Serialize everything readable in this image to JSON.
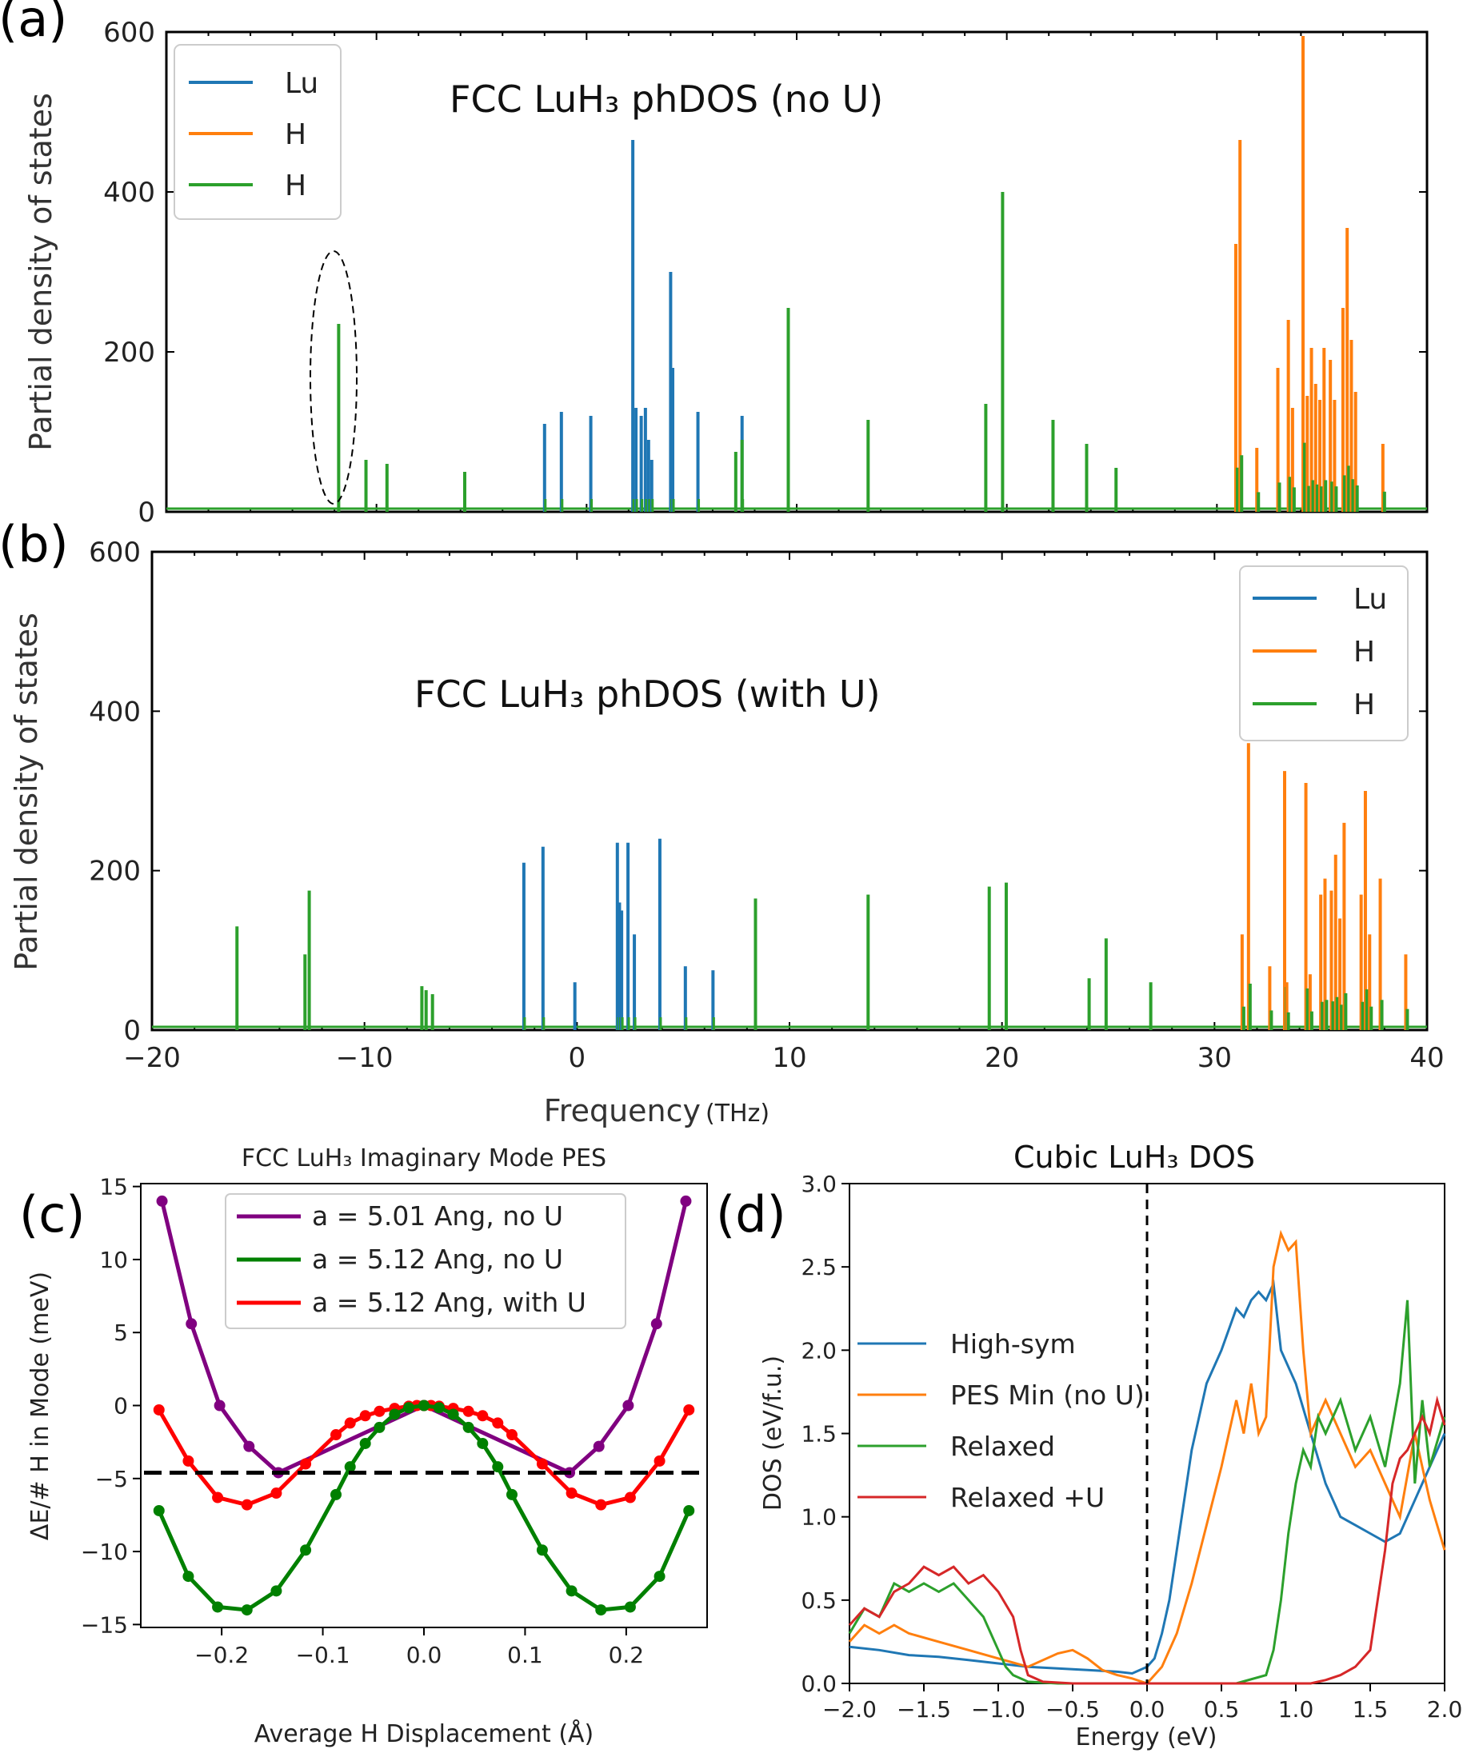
{
  "labels": {
    "a": "(a)",
    "b": "(b)",
    "c": "(c)",
    "d": "(d)"
  },
  "colors": {
    "lu": "#1f77b4",
    "h1": "#ff7f0e",
    "h2": "#2ca02c",
    "h3": "#d62728",
    "purple": "#800080",
    "green": "#008000",
    "red": "#ff0000"
  },
  "chart_data": [
    {
      "id": "a",
      "type": "bar",
      "title": "FCC LuH₃ phDOS (no U)",
      "ylabel": "Partial density of states",
      "xlabel": "",
      "xlim": [
        -20,
        40
      ],
      "ylim": [
        0,
        600
      ],
      "yticks": [
        0,
        200,
        400,
        600
      ],
      "legend": [
        "Lu",
        "H",
        "H"
      ],
      "legend_position": "top-left",
      "annotation": "dashed ellipse around peak near -12 THz",
      "series": [
        {
          "name": "Lu",
          "x": [
            -2,
            -1.2,
            0.2,
            2.2,
            2.35,
            2.6,
            2.8,
            2.95,
            3.1,
            4,
            4.1,
            5.3,
            7.4
          ],
          "values": [
            110,
            125,
            120,
            465,
            130,
            120,
            130,
            90,
            65,
            300,
            180,
            125,
            120
          ]
        },
        {
          "name": "H",
          "x": [
            30.9,
            31.1,
            31.9,
            32.9,
            33.4,
            33.6,
            34.1,
            34.3,
            34.5,
            34.7,
            34.9,
            35.1,
            35.4,
            35.6,
            36,
            36.2,
            36.4,
            36.6,
            37.9
          ],
          "values": [
            335,
            465,
            80,
            180,
            240,
            130,
            595,
            145,
            205,
            160,
            140,
            205,
            190,
            140,
            255,
            355,
            215,
            150,
            85
          ]
        },
        {
          "name": "H",
          "x": [
            -11.8,
            -10.5,
            -9.5,
            -5.8,
            7.1,
            7.4,
            9.6,
            13.4,
            19,
            19.8,
            22.2,
            23.8,
            25.2
          ],
          "values": [
            235,
            65,
            60,
            50,
            75,
            90,
            255,
            115,
            135,
            400,
            115,
            85,
            55
          ]
        }
      ]
    },
    {
      "id": "b",
      "type": "bar",
      "title": "FCC LuH₃ phDOS (with U)",
      "ylabel": "Partial density of states",
      "xlabel": "Frequency",
      "xlabel_unit": "(THz)",
      "xlim": [
        -20,
        40
      ],
      "ylim": [
        0,
        600
      ],
      "xticks": [
        -20,
        -10,
        0,
        10,
        20,
        30,
        40
      ],
      "xtick_labels": [
        "−20",
        "−10",
        "0",
        "10",
        "20",
        "30",
        "40"
      ],
      "yticks": [
        0,
        200,
        400,
        600
      ],
      "legend": [
        "Lu",
        "H",
        "H"
      ],
      "legend_position": "top-right",
      "series": [
        {
          "name": "Lu",
          "x": [
            -2.5,
            -1.6,
            -0.1,
            1.9,
            2,
            2.1,
            2.4,
            2.7,
            3.9,
            5.1,
            6.4
          ],
          "values": [
            210,
            230,
            60,
            235,
            160,
            150,
            235,
            120,
            240,
            80,
            75
          ]
        },
        {
          "name": "H",
          "x": [
            31.3,
            31.6,
            32.6,
            33.3,
            33.4,
            34.3,
            34.5,
            35,
            35.2,
            35.5,
            35.7,
            35.9,
            36.1,
            36.9,
            37.1,
            37.3,
            37.8,
            39
          ],
          "values": [
            120,
            360,
            80,
            325,
            60,
            310,
            70,
            170,
            190,
            175,
            220,
            140,
            260,
            170,
            300,
            120,
            190,
            95
          ]
        },
        {
          "name": "H",
          "x": [
            -16,
            -12.8,
            -12.6,
            -7.3,
            -7.1,
            -6.8,
            8.4,
            13.7,
            19.4,
            20.2,
            24.1,
            24.9,
            27
          ],
          "values": [
            130,
            95,
            175,
            55,
            50,
            45,
            165,
            170,
            180,
            185,
            65,
            115,
            60
          ]
        }
      ]
    },
    {
      "id": "c",
      "type": "line",
      "title": "FCC LuH₃ Imaginary Mode PES",
      "xlabel": "Average H Displacement (Å)",
      "ylabel": "ΔE/# H in Mode (meV)",
      "xlim": [
        -0.28,
        0.28
      ],
      "ylim": [
        -15.2,
        15.2
      ],
      "xticks": [
        -0.2,
        -0.1,
        0.0,
        0.1,
        0.2
      ],
      "xtick_labels": [
        "−0.2",
        "−0.1",
        "0.0",
        "0.1",
        "0.2"
      ],
      "yticks": [
        -15,
        -10,
        -5,
        0,
        5,
        10,
        15
      ],
      "ytick_labels": [
        "−15",
        "−10",
        "−5",
        "0",
        "5",
        "10",
        "15"
      ],
      "legend_position": "top-center",
      "hline": -4.6,
      "series": [
        {
          "name": "a = 5.01 Ang, no U",
          "x": [
            -0.259,
            -0.23,
            -0.202,
            -0.173,
            -0.144,
            0,
            0.144,
            0.173,
            0.202,
            0.23,
            0.259
          ],
          "values": [
            14.0,
            5.6,
            0.0,
            -2.8,
            -4.6,
            0,
            -4.6,
            -2.8,
            0.0,
            5.6,
            14.0
          ]
        },
        {
          "name": "a = 5.12 Ang, no U",
          "x": [
            -0.262,
            -0.233,
            -0.204,
            -0.175,
            -0.146,
            -0.117,
            -0.087,
            -0.073,
            -0.058,
            -0.044,
            -0.029,
            -0.015,
            0,
            0.015,
            0.029,
            0.044,
            0.058,
            0.073,
            0.087,
            0.117,
            0.146,
            0.175,
            0.204,
            0.233,
            0.262
          ],
          "values": [
            -7.2,
            -11.7,
            -13.8,
            -14.0,
            -12.7,
            -9.9,
            -6.1,
            -4.2,
            -2.6,
            -1.5,
            -0.6,
            -0.15,
            0,
            -0.15,
            -0.6,
            -1.5,
            -2.6,
            -4.2,
            -6.1,
            -9.9,
            -12.7,
            -14.0,
            -13.8,
            -11.7,
            -7.2
          ]
        },
        {
          "name": "a = 5.12 Ang, with U",
          "x": [
            -0.262,
            -0.233,
            -0.204,
            -0.175,
            -0.146,
            -0.117,
            -0.087,
            -0.073,
            -0.058,
            -0.044,
            -0.029,
            -0.015,
            -0.007,
            0,
            0.007,
            0.015,
            0.029,
            0.044,
            0.058,
            0.073,
            0.087,
            0.117,
            0.146,
            0.175,
            0.204,
            0.233,
            0.262
          ],
          "values": [
            -0.3,
            -3.8,
            -6.3,
            -6.8,
            -6.0,
            -4.0,
            -2.0,
            -1.2,
            -0.7,
            -0.4,
            -0.2,
            -0.05,
            0,
            0,
            0,
            -0.05,
            -0.2,
            -0.4,
            -0.7,
            -1.2,
            -2.0,
            -4.0,
            -6.0,
            -6.8,
            -6.3,
            -3.8,
            -0.3
          ]
        }
      ]
    },
    {
      "id": "d",
      "type": "line",
      "title": "Cubic LuH₃ DOS",
      "xlabel": "Energy (eV)",
      "ylabel": "DOS (eV/f.u.)",
      "xlim": [
        -2.0,
        2.0
      ],
      "ylim": [
        0.0,
        3.0
      ],
      "xticks": [
        -2.0,
        -1.5,
        -1.0,
        -0.5,
        0.0,
        0.5,
        1.0,
        1.5,
        2.0
      ],
      "xtick_labels": [
        "−2.0",
        "−1.5",
        "−1.0",
        "−0.5",
        "0.0",
        "0.5",
        "1.0",
        "1.5",
        "2.0"
      ],
      "yticks": [
        0.0,
        0.5,
        1.0,
        1.5,
        2.0,
        2.5,
        3.0
      ],
      "ytick_labels": [
        "0.0",
        "0.5",
        "1.0",
        "1.5",
        "2.0",
        "2.5",
        "3.0"
      ],
      "legend_position": "center-left",
      "vline": 0.0,
      "series": [
        {
          "name": "High-sym",
          "x": [
            -2.0,
            -1.8,
            -1.6,
            -1.4,
            -1.2,
            -1.0,
            -0.8,
            -0.6,
            -0.4,
            -0.2,
            -0.1,
            0.0,
            0.05,
            0.1,
            0.15,
            0.2,
            0.3,
            0.4,
            0.5,
            0.6,
            0.65,
            0.7,
            0.75,
            0.8,
            0.85,
            0.9,
            0.95,
            1.0,
            1.1,
            1.2,
            1.3,
            1.4,
            1.5,
            1.6,
            1.7,
            1.8,
            1.9,
            2.0
          ],
          "values": [
            0.22,
            0.2,
            0.17,
            0.16,
            0.14,
            0.12,
            0.1,
            0.09,
            0.08,
            0.07,
            0.06,
            0.1,
            0.15,
            0.3,
            0.5,
            0.8,
            1.4,
            1.8,
            2.0,
            2.25,
            2.2,
            2.3,
            2.35,
            2.3,
            2.4,
            2.0,
            1.9,
            1.8,
            1.5,
            1.2,
            1.0,
            0.95,
            0.9,
            0.85,
            0.9,
            1.1,
            1.3,
            1.5
          ]
        },
        {
          "name": "PES Min (no U)",
          "x": [
            -2.0,
            -1.9,
            -1.8,
            -1.7,
            -1.6,
            -1.4,
            -1.2,
            -1.0,
            -0.8,
            -0.6,
            -0.5,
            -0.4,
            -0.3,
            -0.2,
            -0.1,
            0.0,
            0.1,
            0.2,
            0.3,
            0.4,
            0.5,
            0.6,
            0.65,
            0.7,
            0.75,
            0.8,
            0.85,
            0.9,
            0.95,
            1.0,
            1.05,
            1.1,
            1.2,
            1.3,
            1.4,
            1.5,
            1.6,
            1.7,
            1.8,
            1.9,
            2.0
          ],
          "values": [
            0.25,
            0.35,
            0.3,
            0.35,
            0.3,
            0.25,
            0.2,
            0.15,
            0.1,
            0.18,
            0.2,
            0.15,
            0.08,
            0.05,
            0.03,
            0.0,
            0.1,
            0.3,
            0.6,
            0.95,
            1.3,
            1.7,
            1.5,
            1.8,
            1.5,
            1.6,
            2.5,
            2.7,
            2.6,
            2.65,
            2.0,
            1.5,
            1.7,
            1.5,
            1.3,
            1.4,
            1.2,
            1.0,
            1.5,
            1.1,
            0.8
          ]
        },
        {
          "name": "Relaxed",
          "x": [
            -2.0,
            -1.9,
            -1.8,
            -1.7,
            -1.6,
            -1.5,
            -1.4,
            -1.3,
            -1.2,
            -1.1,
            -1.05,
            -1.0,
            -0.95,
            -0.9,
            -0.8,
            -0.6,
            -0.4,
            -0.2,
            0.0,
            0.2,
            0.4,
            0.6,
            0.8,
            0.85,
            0.9,
            0.95,
            1.0,
            1.05,
            1.1,
            1.15,
            1.2,
            1.3,
            1.4,
            1.5,
            1.6,
            1.7,
            1.75,
            1.8,
            1.85,
            1.9,
            2.0
          ],
          "values": [
            0.3,
            0.45,
            0.4,
            0.6,
            0.55,
            0.6,
            0.55,
            0.6,
            0.5,
            0.4,
            0.3,
            0.2,
            0.1,
            0.05,
            0.01,
            0.0,
            0.0,
            0.0,
            0.0,
            0.0,
            0.0,
            0.0,
            0.05,
            0.2,
            0.5,
            0.9,
            1.2,
            1.4,
            1.3,
            1.6,
            1.5,
            1.7,
            1.4,
            1.6,
            1.3,
            1.8,
            2.3,
            1.2,
            1.7,
            1.3,
            1.6
          ]
        },
        {
          "name": "Relaxed +U",
          "x": [
            -2.0,
            -1.9,
            -1.8,
            -1.7,
            -1.6,
            -1.5,
            -1.4,
            -1.3,
            -1.2,
            -1.1,
            -1.0,
            -0.9,
            -0.85,
            -0.8,
            -0.7,
            -0.5,
            0.0,
            0.5,
            1.0,
            1.1,
            1.2,
            1.3,
            1.4,
            1.5,
            1.55,
            1.6,
            1.65,
            1.7,
            1.75,
            1.8,
            1.85,
            1.9,
            1.95,
            2.0
          ],
          "values": [
            0.35,
            0.45,
            0.4,
            0.55,
            0.6,
            0.7,
            0.65,
            0.7,
            0.6,
            0.65,
            0.55,
            0.4,
            0.2,
            0.05,
            0.01,
            0.0,
            0.0,
            0.0,
            0.0,
            0.0,
            0.02,
            0.05,
            0.1,
            0.2,
            0.5,
            0.8,
            1.2,
            1.35,
            1.4,
            1.5,
            1.6,
            1.5,
            1.7,
            1.55
          ]
        }
      ]
    }
  ]
}
